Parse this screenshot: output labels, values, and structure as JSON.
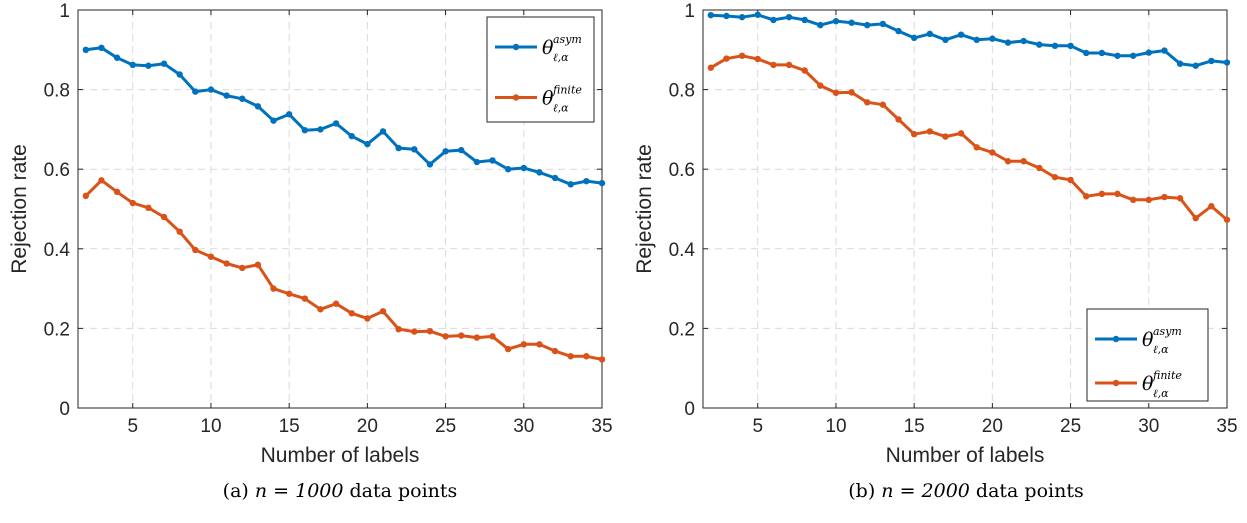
{
  "colors": {
    "asym": "#0072BD",
    "finite": "#D95319",
    "grid": "#d9d9d9",
    "axis": "#262626"
  },
  "chart_data": [
    {
      "type": "line",
      "caption_prefix": "(a) ",
      "caption_math": "n = 1000",
      "caption_suffix": " data points",
      "xlabel": "Number of labels",
      "ylabel": "Rejection rate",
      "xlim": [
        1.5,
        35
      ],
      "ylim": [
        0,
        1
      ],
      "xticks": [
        5,
        10,
        15,
        20,
        25,
        30,
        35
      ],
      "yticks": [
        0,
        0.2,
        0.4,
        0.6,
        0.8,
        1
      ],
      "ytick_labels": [
        "0",
        "0.2",
        "0.4",
        "0.6",
        "0.8",
        "1"
      ],
      "grid": true,
      "legend_position": "top-right",
      "x": [
        2,
        3,
        4,
        5,
        6,
        7,
        8,
        9,
        10,
        11,
        12,
        13,
        14,
        15,
        16,
        17,
        18,
        19,
        20,
        21,
        22,
        23,
        24,
        25,
        26,
        27,
        28,
        29,
        30,
        31,
        32,
        33,
        34,
        35
      ],
      "series": [
        {
          "key": "asym",
          "name": "θ",
          "sub": "ℓ,α",
          "sup": "asym",
          "values": [
            0.9,
            0.905,
            0.88,
            0.862,
            0.86,
            0.865,
            0.838,
            0.795,
            0.8,
            0.785,
            0.777,
            0.758,
            0.722,
            0.738,
            0.698,
            0.7,
            0.715,
            0.683,
            0.663,
            0.695,
            0.653,
            0.65,
            0.612,
            0.645,
            0.648,
            0.618,
            0.622,
            0.6,
            0.603,
            0.592,
            0.578,
            0.562,
            0.57,
            0.565
          ]
        },
        {
          "key": "finite",
          "name": "θ",
          "sub": "ℓ,α",
          "sup": "finite",
          "values": [
            0.533,
            0.572,
            0.543,
            0.515,
            0.503,
            0.48,
            0.443,
            0.397,
            0.38,
            0.363,
            0.352,
            0.36,
            0.3,
            0.287,
            0.275,
            0.248,
            0.262,
            0.238,
            0.225,
            0.243,
            0.198,
            0.192,
            0.193,
            0.18,
            0.182,
            0.177,
            0.18,
            0.148,
            0.16,
            0.16,
            0.143,
            0.13,
            0.13,
            0.122
          ]
        }
      ]
    },
    {
      "type": "line",
      "caption_prefix": "(b) ",
      "caption_math": "n = 2000",
      "caption_suffix": " data points",
      "xlabel": "Number of labels",
      "ylabel": "Rejection rate",
      "xlim": [
        1.5,
        35
      ],
      "ylim": [
        0,
        1
      ],
      "xticks": [
        5,
        10,
        15,
        20,
        25,
        30,
        35
      ],
      "yticks": [
        0,
        0.2,
        0.4,
        0.6,
        0.8,
        1
      ],
      "ytick_labels": [
        "0",
        "0.2",
        "0.4",
        "0.6",
        "0.8",
        "1"
      ],
      "grid": true,
      "legend_position": "bottom-right",
      "x": [
        2,
        3,
        4,
        5,
        6,
        7,
        8,
        9,
        10,
        11,
        12,
        13,
        14,
        15,
        16,
        17,
        18,
        19,
        20,
        21,
        22,
        23,
        24,
        25,
        26,
        27,
        28,
        29,
        30,
        31,
        32,
        33,
        34,
        35
      ],
      "series": [
        {
          "key": "asym",
          "name": "θ",
          "sub": "ℓ,α",
          "sup": "asym",
          "values": [
            0.987,
            0.985,
            0.982,
            0.988,
            0.975,
            0.982,
            0.975,
            0.962,
            0.972,
            0.968,
            0.962,
            0.965,
            0.947,
            0.93,
            0.94,
            0.925,
            0.938,
            0.925,
            0.928,
            0.918,
            0.922,
            0.913,
            0.91,
            0.91,
            0.892,
            0.892,
            0.885,
            0.885,
            0.893,
            0.898,
            0.865,
            0.86,
            0.872,
            0.868
          ]
        },
        {
          "key": "finite",
          "name": "θ",
          "sub": "ℓ,α",
          "sup": "finite",
          "values": [
            0.855,
            0.878,
            0.885,
            0.877,
            0.862,
            0.862,
            0.848,
            0.81,
            0.792,
            0.793,
            0.768,
            0.762,
            0.725,
            0.688,
            0.695,
            0.682,
            0.69,
            0.655,
            0.642,
            0.62,
            0.62,
            0.603,
            0.58,
            0.573,
            0.532,
            0.538,
            0.538,
            0.523,
            0.523,
            0.53,
            0.527,
            0.477,
            0.507,
            0.473
          ]
        }
      ]
    }
  ]
}
